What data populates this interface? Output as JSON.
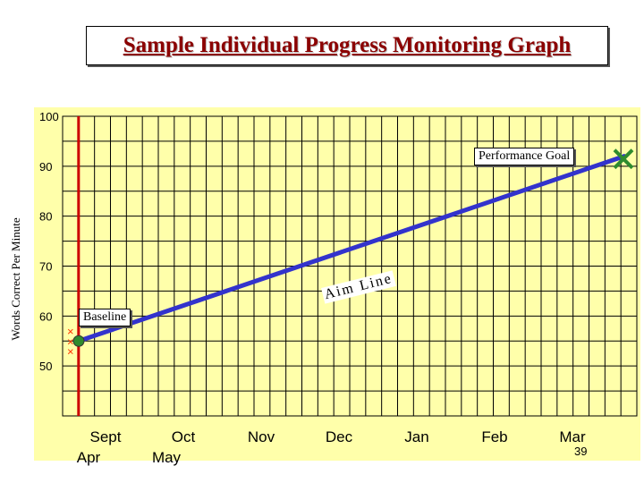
{
  "title": "Sample Individual Progress Monitoring Graph",
  "page_number": "39",
  "annotations": {
    "performance_goal": "Performance Goal",
    "aim_line": "Aim Line",
    "baseline": "Baseline"
  },
  "chart_data": {
    "type": "line",
    "title": "Sample Individual Progress Monitoring Graph",
    "ylabel": "Words Correct Per Minute",
    "xlabel": "",
    "ylim": [
      40,
      100
    ],
    "yticks": [
      100,
      90,
      80,
      70,
      60,
      50
    ],
    "month_labels": [
      {
        "line1": "Sept",
        "line2": "Apr"
      },
      {
        "line1": "Oct",
        "line2": "May"
      },
      {
        "line1": "Nov",
        "line2": ""
      },
      {
        "line1": "Dec",
        "line2": ""
      },
      {
        "line1": "Jan",
        "line2": ""
      },
      {
        "line1": "Feb",
        "line2": ""
      },
      {
        "line1": "Mar",
        "line2": ""
      }
    ],
    "baseline_scores": [
      57,
      55,
      53
    ],
    "aim_line": {
      "start": [
        0,
        55
      ],
      "end": [
        36,
        92
      ]
    },
    "goal": [
      36,
      92
    ],
    "grid": true,
    "colors": {
      "aim_line": "#3333cc",
      "baseline_marker": "#ff3300",
      "goal_marker": "#2e8b2e",
      "baseline_divider": "#cc0000",
      "grid": "#000000",
      "plot_bg": "#ffffaa"
    }
  }
}
